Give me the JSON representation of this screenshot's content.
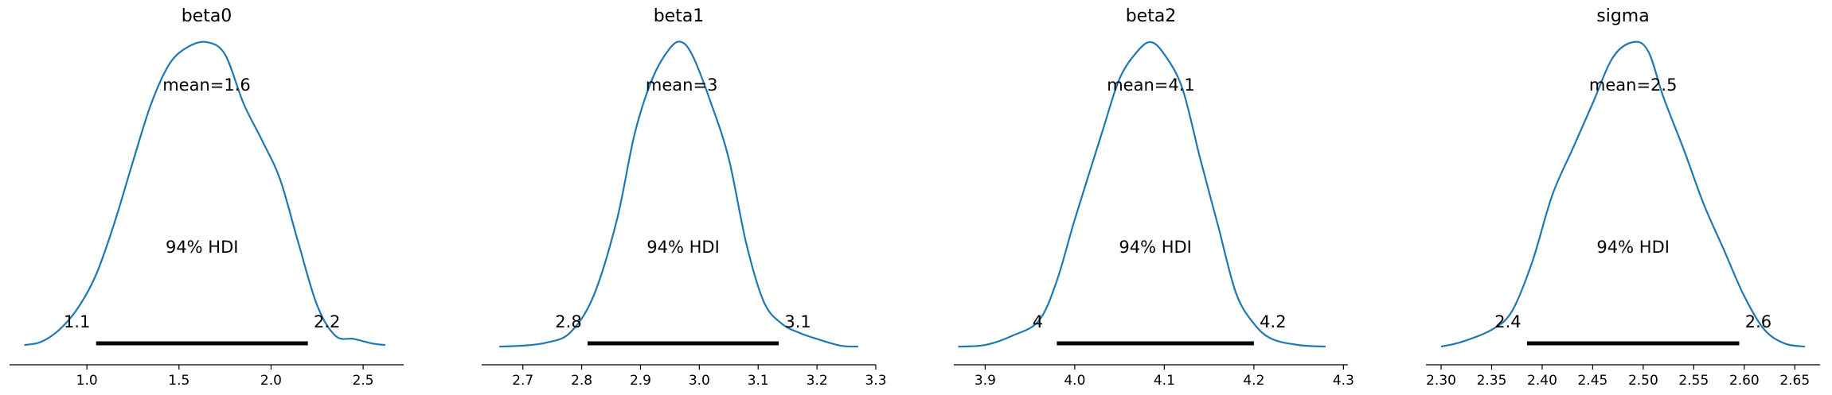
{
  "chart_data": [
    {
      "type": "density",
      "title": "beta0",
      "xlim": [
        0.58,
        2.72
      ],
      "ticks": [
        1.0,
        1.5,
        2.0,
        2.5
      ],
      "tick_labels": [
        "1.0",
        "1.5",
        "2.0",
        "2.5"
      ],
      "mean_label": "mean=1.6",
      "hdi_label": "94% HDI",
      "hdi": [
        1.05,
        2.2
      ],
      "hdi_low_label": "1.1",
      "hdi_high_label": "2.2",
      "color": "#1f77b4",
      "curve": [
        [
          0.66,
          0.01
        ],
        [
          0.75,
          0.02
        ],
        [
          0.85,
          0.06
        ],
        [
          0.95,
          0.13
        ],
        [
          1.05,
          0.24
        ],
        [
          1.15,
          0.41
        ],
        [
          1.25,
          0.61
        ],
        [
          1.35,
          0.8
        ],
        [
          1.45,
          0.93
        ],
        [
          1.55,
          0.985
        ],
        [
          1.65,
          1.0
        ],
        [
          1.75,
          0.96
        ],
        [
          1.85,
          0.8
        ],
        [
          1.95,
          0.68
        ],
        [
          2.05,
          0.55
        ],
        [
          2.15,
          0.34
        ],
        [
          2.25,
          0.14
        ],
        [
          2.35,
          0.04
        ],
        [
          2.45,
          0.03
        ],
        [
          2.55,
          0.015
        ],
        [
          2.62,
          0.01
        ]
      ]
    },
    {
      "type": "density",
      "title": "beta1",
      "xlim": [
        2.63,
        3.3
      ],
      "ticks": [
        2.7,
        2.8,
        2.9,
        3.0,
        3.1,
        3.2,
        3.3
      ],
      "tick_labels": [
        "2.7",
        "2.8",
        "2.9",
        "3.0",
        "3.1",
        "3.2",
        "3.3"
      ],
      "mean_label": "mean=3",
      "hdi_label": "94% HDI",
      "hdi": [
        2.81,
        3.135
      ],
      "hdi_low_label": "2.8",
      "hdi_high_label": "3.1",
      "color": "#1f77b4",
      "curve": [
        [
          2.66,
          0.005
        ],
        [
          2.7,
          0.008
        ],
        [
          2.74,
          0.018
        ],
        [
          2.78,
          0.05
        ],
        [
          2.82,
          0.17
        ],
        [
          2.86,
          0.42
        ],
        [
          2.89,
          0.7
        ],
        [
          2.92,
          0.88
        ],
        [
          2.95,
          0.98
        ],
        [
          2.97,
          1.0
        ],
        [
          2.99,
          0.95
        ],
        [
          3.02,
          0.8
        ],
        [
          3.05,
          0.62
        ],
        [
          3.08,
          0.34
        ],
        [
          3.11,
          0.15
        ],
        [
          3.14,
          0.08
        ],
        [
          3.17,
          0.05
        ],
        [
          3.2,
          0.03
        ],
        [
          3.24,
          0.008
        ],
        [
          3.27,
          0.005
        ]
      ]
    },
    {
      "type": "density",
      "title": "beta2",
      "xlim": [
        3.865,
        4.305
      ],
      "ticks": [
        3.9,
        4.0,
        4.1,
        4.2,
        4.3
      ],
      "tick_labels": [
        "3.9",
        "4.0",
        "4.1",
        "4.2",
        "4.3"
      ],
      "mean_label": "mean=4.1",
      "hdi_label": "94% HDI",
      "hdi": [
        3.98,
        4.2
      ],
      "hdi_low_label": "4",
      "hdi_high_label": "4.2",
      "color": "#1f77b4",
      "curve": [
        [
          3.87,
          0.005
        ],
        [
          3.9,
          0.01
        ],
        [
          3.93,
          0.04
        ],
        [
          3.96,
          0.09
        ],
        [
          3.98,
          0.22
        ],
        [
          4.0,
          0.42
        ],
        [
          4.03,
          0.7
        ],
        [
          4.05,
          0.88
        ],
        [
          4.07,
          0.97
        ],
        [
          4.085,
          1.0
        ],
        [
          4.1,
          0.96
        ],
        [
          4.12,
          0.85
        ],
        [
          4.14,
          0.62
        ],
        [
          4.16,
          0.4
        ],
        [
          4.18,
          0.18
        ],
        [
          4.2,
          0.08
        ],
        [
          4.22,
          0.03
        ],
        [
          4.25,
          0.01
        ],
        [
          4.28,
          0.005
        ]
      ]
    },
    {
      "type": "density",
      "title": "sigma",
      "xlim": [
        2.285,
        2.675
      ],
      "ticks": [
        2.3,
        2.35,
        2.4,
        2.45,
        2.5,
        2.55,
        2.6,
        2.65
      ],
      "tick_labels": [
        "2.30",
        "2.35",
        "2.40",
        "2.45",
        "2.50",
        "2.55",
        "2.60",
        "2.65"
      ],
      "mean_label": "mean=2.5",
      "hdi_label": "94% HDI",
      "hdi": [
        2.385,
        2.595
      ],
      "hdi_low_label": "2.4",
      "hdi_high_label": "2.6",
      "color": "#1f77b4",
      "curve": [
        [
          2.3,
          0.005
        ],
        [
          2.32,
          0.02
        ],
        [
          2.35,
          0.06
        ],
        [
          2.37,
          0.12
        ],
        [
          2.39,
          0.28
        ],
        [
          2.41,
          0.5
        ],
        [
          2.43,
          0.65
        ],
        [
          2.45,
          0.8
        ],
        [
          2.47,
          0.95
        ],
        [
          2.49,
          1.0
        ],
        [
          2.505,
          0.97
        ],
        [
          2.52,
          0.82
        ],
        [
          2.54,
          0.65
        ],
        [
          2.56,
          0.47
        ],
        [
          2.58,
          0.32
        ],
        [
          2.6,
          0.17
        ],
        [
          2.62,
          0.06
        ],
        [
          2.64,
          0.015
        ],
        [
          2.66,
          0.005
        ]
      ]
    }
  ]
}
